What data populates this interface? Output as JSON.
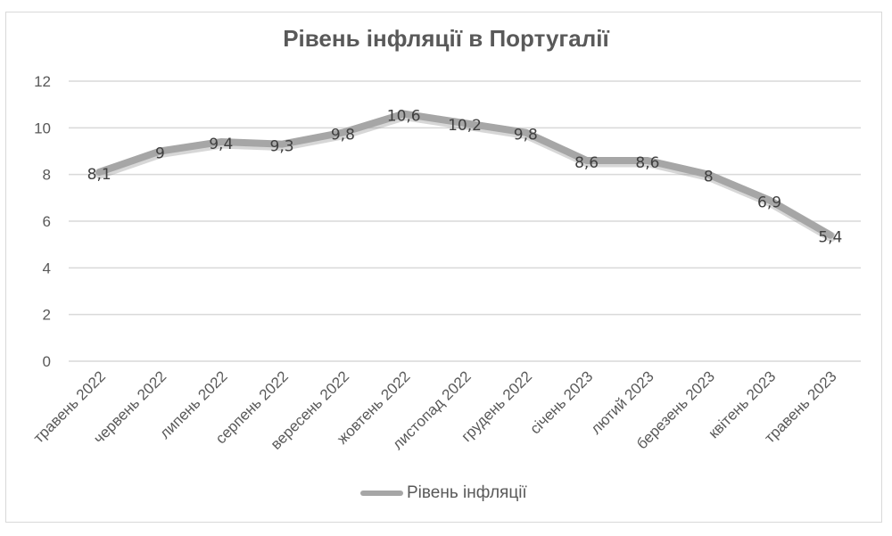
{
  "chart_data": {
    "type": "line",
    "title": "Рівень інфляції в Португалії",
    "xlabel": "",
    "ylabel": "",
    "ylim": [
      0,
      12
    ],
    "yticks": [
      0,
      2,
      4,
      6,
      8,
      10,
      12
    ],
    "grid": true,
    "legend_position": "bottom",
    "categories": [
      "травень 2022",
      "червень 2022",
      "липень 2022",
      "серпень 2022",
      "вересень 2022",
      "жовтень 2022",
      "листопад 2022",
      "грудень 2022",
      "січень 2023",
      "лютий 2023",
      "березень 2023",
      "квітень 2023",
      "травень 2023"
    ],
    "series": [
      {
        "name": "Рівень інфляції",
        "values": [
          8.1,
          9,
          9.4,
          9.3,
          9.8,
          10.6,
          10.2,
          9.8,
          8.6,
          8.6,
          8,
          6.9,
          5.4
        ],
        "data_labels": [
          "8,1",
          "9",
          "9,4",
          "9,3",
          "9,8",
          "10,6",
          "10,2",
          "9,8",
          "8,6",
          "8,6",
          "8",
          "6,9",
          "5,4"
        ],
        "color": "#a6a6a6"
      }
    ]
  },
  "colors": {
    "title": "#595959",
    "axis_text": "#595959",
    "gridline": "#d9d9d9",
    "line": "#a6a6a6",
    "data_label": "#404040"
  }
}
